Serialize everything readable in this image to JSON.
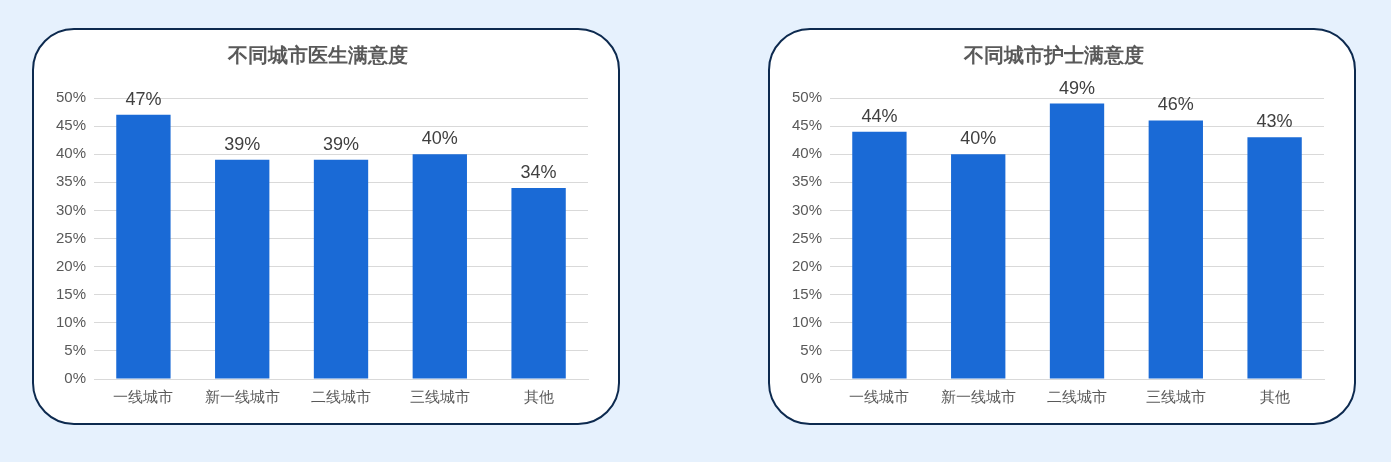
{
  "chart_data": [
    {
      "type": "bar",
      "title": "不同城市医生满意度",
      "categories": [
        "一线城市",
        "新一线城市",
        "二线城市",
        "三线城市",
        "其他"
      ],
      "series": [
        {
          "color": "#1a6ad6",
          "values": [
            47,
            39,
            39,
            40,
            34
          ],
          "value_labels": [
            "47%",
            "39%",
            "39%",
            "40%",
            "34%"
          ]
        }
      ],
      "ylim": [
        0,
        50
      ],
      "yticks": [
        {
          "value": 0,
          "label": "0%"
        },
        {
          "value": 5,
          "label": "5%"
        },
        {
          "value": 10,
          "label": "10%"
        },
        {
          "value": 15,
          "label": "15%"
        },
        {
          "value": 20,
          "label": "20%"
        },
        {
          "value": 25,
          "label": "25%"
        },
        {
          "value": 30,
          "label": "30%"
        },
        {
          "value": 35,
          "label": "35%"
        },
        {
          "value": 40,
          "label": "40%"
        },
        {
          "value": 45,
          "label": "45%"
        },
        {
          "value": 50,
          "label": "50%"
        }
      ],
      "grid": "y",
      "legend": false
    },
    {
      "type": "bar",
      "title": "不同城市护士满意度",
      "categories": [
        "一线城市",
        "新一线城市",
        "二线城市",
        "三线城市",
        "其他"
      ],
      "series": [
        {
          "color": "#1a6ad6",
          "values": [
            44,
            40,
            49,
            46,
            43
          ],
          "value_labels": [
            "44%",
            "40%",
            "49%",
            "46%",
            "43%"
          ]
        }
      ],
      "ylim": [
        0,
        50
      ],
      "yticks": [
        {
          "value": 0,
          "label": "0%"
        },
        {
          "value": 5,
          "label": "5%"
        },
        {
          "value": 10,
          "label": "10%"
        },
        {
          "value": 15,
          "label": "15%"
        },
        {
          "value": 20,
          "label": "20%"
        },
        {
          "value": 25,
          "label": "25%"
        },
        {
          "value": 30,
          "label": "30%"
        },
        {
          "value": 35,
          "label": "35%"
        },
        {
          "value": 40,
          "label": "40%"
        },
        {
          "value": 45,
          "label": "45%"
        },
        {
          "value": 50,
          "label": "50%"
        }
      ],
      "grid": "y",
      "legend": false
    }
  ]
}
